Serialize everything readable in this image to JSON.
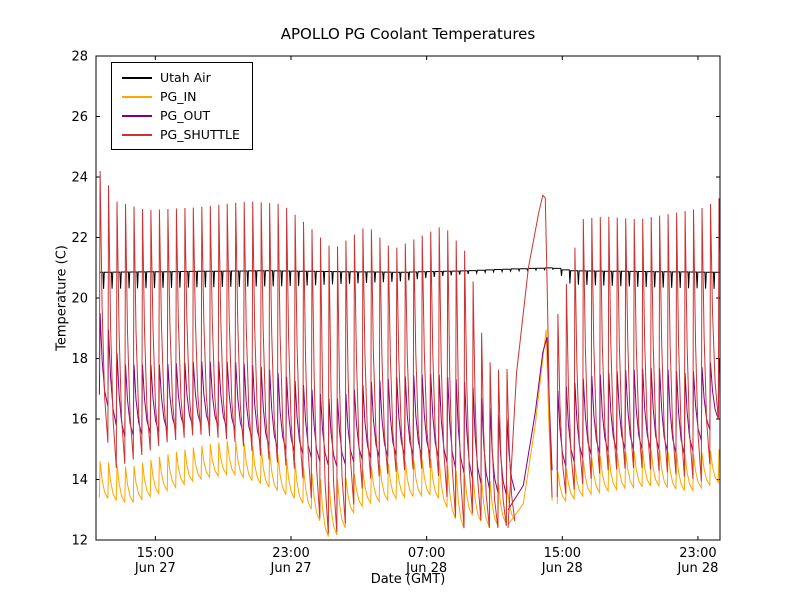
{
  "figure": {
    "background": "#ffffff",
    "axes_color": "#000000"
  },
  "chart_data": {
    "type": "line",
    "title": "APOLLO PG Coolant Temperatures",
    "xlabel": "Date (GMT)",
    "ylabel": "Temperature (C)",
    "ylim": [
      12,
      28
    ],
    "yticks": [
      12,
      14,
      16,
      18,
      20,
      22,
      24,
      26,
      28
    ],
    "xlim_hours": [
      0,
      36.8
    ],
    "grid": false,
    "legend_position": "upper left",
    "xticks": [
      {
        "pos": 3.5,
        "time": "15:00",
        "date": "Jun 27"
      },
      {
        "pos": 11.5,
        "time": "23:00",
        "date": "Jun 27"
      },
      {
        "pos": 19.5,
        "time": "07:00",
        "date": "Jun 28"
      },
      {
        "pos": 27.5,
        "time": "15:00",
        "date": "Jun 28"
      },
      {
        "pos": 35.5,
        "time": "23:00",
        "date": "Jun 28"
      }
    ],
    "series": [
      {
        "name": "Utah Air",
        "color": "#000000",
        "shape": "baseline",
        "period": 0.5,
        "start": 0.2,
        "end": 36.75,
        "base": [
          [
            0,
            20.85
          ],
          [
            10,
            20.9
          ],
          [
            18,
            20.85
          ],
          [
            22,
            20.9
          ],
          [
            24,
            20.95
          ],
          [
            27,
            21.0
          ],
          [
            28,
            20.9
          ],
          [
            36.7,
            20.85
          ]
        ],
        "dip": [
          [
            0,
            20.3
          ],
          [
            6,
            20.35
          ],
          [
            12,
            20.4
          ],
          [
            18,
            20.55
          ],
          [
            20,
            20.7
          ],
          [
            23,
            20.85
          ],
          [
            27,
            20.95
          ],
          [
            28,
            20.45
          ],
          [
            33,
            20.35
          ],
          [
            36.7,
            20.3
          ]
        ],
        "skip": []
      },
      {
        "name": "PG_IN",
        "color": "#ffa500",
        "shape": "sawtooth",
        "period": 0.5,
        "start": 0.2,
        "end": 36.75,
        "peaks": [
          [
            0.5,
            14.6
          ],
          [
            2,
            14.4
          ],
          [
            4,
            14.8
          ],
          [
            6,
            15.1
          ],
          [
            8,
            15.3
          ],
          [
            10,
            15.0
          ],
          [
            12,
            14.5
          ],
          [
            13.5,
            13.9
          ],
          [
            15,
            14.1
          ],
          [
            16,
            14.4
          ],
          [
            18,
            14.6
          ],
          [
            20,
            14.7
          ],
          [
            21.5,
            14.2
          ],
          [
            23,
            14.0
          ],
          [
            24,
            13.8
          ],
          [
            27.5,
            14.3
          ],
          [
            29,
            14.7
          ],
          [
            31,
            14.9
          ],
          [
            33,
            15.0
          ],
          [
            35,
            14.8
          ],
          [
            36.7,
            15.0
          ]
        ],
        "troughs": [
          [
            0.5,
            13.4
          ],
          [
            2,
            13.2
          ],
          [
            4,
            13.6
          ],
          [
            6,
            14.0
          ],
          [
            8,
            14.2
          ],
          [
            10,
            13.8
          ],
          [
            12,
            13.3
          ],
          [
            13,
            12.9
          ],
          [
            13.6,
            12.1
          ],
          [
            14.5,
            12.2
          ],
          [
            15.3,
            13.0
          ],
          [
            16,
            13.2
          ],
          [
            18,
            13.4
          ],
          [
            20,
            13.5
          ],
          [
            21,
            12.9
          ],
          [
            21.6,
            12.3
          ],
          [
            22.3,
            12.9
          ],
          [
            23,
            12.4
          ],
          [
            24,
            12.5
          ],
          [
            27.2,
            13.2
          ],
          [
            29,
            13.5
          ],
          [
            31,
            13.7
          ],
          [
            33,
            13.8
          ],
          [
            35,
            13.6
          ],
          [
            36.7,
            13.9
          ]
        ],
        "skip": [
          [
            24.3,
            27.0
          ]
        ],
        "extra": [
          [
            24.3,
            12.5
          ],
          [
            25.2,
            13.2
          ],
          [
            25.9,
            15.8
          ],
          [
            26.35,
            18.0
          ],
          [
            26.55,
            18.95
          ],
          [
            26.7,
            16.0
          ],
          [
            26.9,
            13.3
          ]
        ]
      },
      {
        "name": "PG_OUT",
        "color": "#800080",
        "shape": "sawtooth",
        "period": 0.5,
        "start": 0.2,
        "end": 36.75,
        "peaks": [
          [
            0.4,
            19.5
          ],
          [
            1.5,
            17.8
          ],
          [
            4,
            17.8
          ],
          [
            6,
            17.9
          ],
          [
            8,
            17.9
          ],
          [
            10,
            17.7
          ],
          [
            12,
            17.2
          ],
          [
            14,
            16.6
          ],
          [
            16,
            17.2
          ],
          [
            18,
            17.4
          ],
          [
            20,
            17.5
          ],
          [
            22,
            17.2
          ],
          [
            23.5,
            16.2
          ],
          [
            24.2,
            16.0
          ],
          [
            27.5,
            17.0
          ],
          [
            29,
            17.4
          ],
          [
            31,
            17.6
          ],
          [
            33,
            17.7
          ],
          [
            35,
            17.5
          ],
          [
            36.7,
            18.0
          ]
        ],
        "troughs": [
          [
            0.4,
            16.8
          ],
          [
            1.5,
            15.4
          ],
          [
            4,
            15.6
          ],
          [
            6,
            15.8
          ],
          [
            8,
            15.7
          ],
          [
            10,
            15.1
          ],
          [
            12,
            14.9
          ],
          [
            14,
            14.4
          ],
          [
            16,
            14.7
          ],
          [
            18,
            14.8
          ],
          [
            20,
            14.8
          ],
          [
            22,
            14.1
          ],
          [
            23.5,
            13.6
          ],
          [
            24.2,
            13.5
          ],
          [
            27.2,
            14.3
          ],
          [
            29,
            14.8
          ],
          [
            31,
            15.0
          ],
          [
            33,
            15.0
          ],
          [
            35,
            14.8
          ],
          [
            36.7,
            16.0
          ]
        ],
        "skip": [
          [
            24.3,
            27.0
          ]
        ],
        "extra": [
          [
            24.3,
            13.0
          ],
          [
            25.2,
            13.8
          ],
          [
            25.9,
            16.2
          ],
          [
            26.35,
            18.2
          ],
          [
            26.6,
            18.7
          ],
          [
            26.75,
            16.3
          ],
          [
            26.9,
            14.3
          ]
        ]
      },
      {
        "name": "PG_SHUTTLE",
        "color": "#cc3333",
        "shape": "sawtooth",
        "period": 0.5,
        "start": 0.2,
        "end": 36.75,
        "peaks": [
          [
            0.35,
            24.2
          ],
          [
            1.2,
            23.2
          ],
          [
            3,
            22.9
          ],
          [
            6,
            23.0
          ],
          [
            9,
            23.2
          ],
          [
            11,
            23.1
          ],
          [
            12.5,
            22.4
          ],
          [
            14,
            21.6
          ],
          [
            16,
            22.4
          ],
          [
            17.5,
            21.6
          ],
          [
            19,
            22.0
          ],
          [
            20.5,
            22.4
          ],
          [
            22,
            21.4
          ],
          [
            23,
            18.0
          ],
          [
            24,
            17.5
          ],
          [
            27.3,
            19.5
          ],
          [
            28,
            21.0
          ],
          [
            28.6,
            22.6
          ],
          [
            30,
            22.7
          ],
          [
            32,
            22.6
          ],
          [
            34,
            22.8
          ],
          [
            36,
            23.0
          ],
          [
            36.7,
            23.3
          ]
        ],
        "troughs": [
          [
            0.2,
            17.5
          ],
          [
            0.9,
            14.3
          ],
          [
            2,
            14.6
          ],
          [
            4,
            15.2
          ],
          [
            6,
            15.5
          ],
          [
            8,
            15.3
          ],
          [
            10,
            14.7
          ],
          [
            12,
            14.3
          ],
          [
            13,
            13.0
          ],
          [
            13.6,
            12.2
          ],
          [
            14.5,
            12.3
          ],
          [
            15.3,
            13.3
          ],
          [
            16,
            14.0
          ],
          [
            18,
            14.3
          ],
          [
            20,
            14.4
          ],
          [
            21,
            13.0
          ],
          [
            21.6,
            12.3
          ],
          [
            22.3,
            13.0
          ],
          [
            23,
            12.4
          ],
          [
            24,
            12.4
          ],
          [
            27.1,
            13.4
          ],
          [
            28,
            13.6
          ],
          [
            30,
            14.3
          ],
          [
            32,
            14.4
          ],
          [
            34,
            14.2
          ],
          [
            36,
            13.9
          ],
          [
            36.7,
            16.0
          ]
        ],
        "skip": [
          [
            24.3,
            27.0
          ]
        ],
        "extra": [
          [
            24.3,
            12.4
          ],
          [
            24.8,
            17.5
          ],
          [
            25.5,
            21.0
          ],
          [
            26.1,
            22.8
          ],
          [
            26.35,
            23.4
          ],
          [
            26.5,
            23.3
          ],
          [
            26.62,
            20.0
          ],
          [
            26.75,
            16.0
          ],
          [
            26.9,
            13.4
          ]
        ]
      }
    ]
  }
}
